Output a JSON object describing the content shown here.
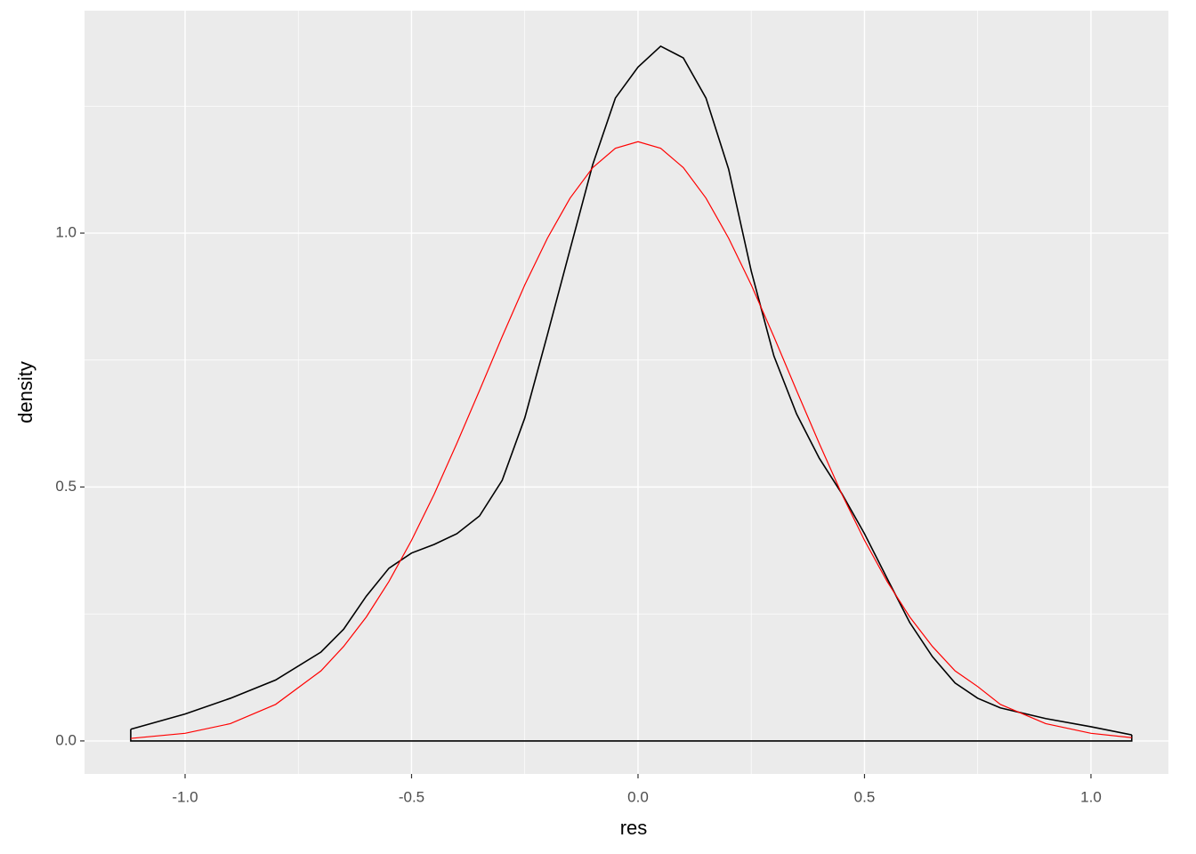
{
  "chart_data": {
    "type": "line",
    "x_label": "res",
    "y_label": "density",
    "x": [
      -1.12,
      -1.0,
      -0.9,
      -0.8,
      -0.7,
      -0.65,
      -0.6,
      -0.55,
      -0.5,
      -0.45,
      -0.4,
      -0.35,
      -0.3,
      -0.25,
      -0.2,
      -0.15,
      -0.1,
      -0.05,
      0,
      0.05,
      0.1,
      0.15,
      0.2,
      0.25,
      0.3,
      0.35,
      0.4,
      0.45,
      0.5,
      0.55,
      0.6,
      0.65,
      0.7,
      0.75,
      0.8,
      0.9,
      1.0,
      1.09
    ],
    "series": [
      {
        "color": "#000000",
        "values": [
          0.023,
          0.053,
          0.084,
          0.12,
          0.175,
          0.22,
          0.285,
          0.34,
          0.37,
          0.387,
          0.408,
          0.443,
          0.513,
          0.636,
          0.8,
          0.968,
          1.135,
          1.266,
          1.327,
          1.368,
          1.345,
          1.266,
          1.126,
          0.925,
          0.758,
          0.644,
          0.557,
          0.487,
          0.408,
          0.32,
          0.233,
          0.166,
          0.114,
          0.084,
          0.065,
          0.044,
          0.028,
          0.012
        ]
      },
      {
        "color": "#ff0000",
        "values": [
          0.005,
          0.015,
          0.034,
          0.072,
          0.138,
          0.186,
          0.244,
          0.314,
          0.395,
          0.486,
          0.586,
          0.69,
          0.796,
          0.898,
          0.99,
          1.069,
          1.129,
          1.167,
          1.18,
          1.167,
          1.129,
          1.069,
          0.99,
          0.898,
          0.796,
          0.69,
          0.586,
          0.486,
          0.395,
          0.314,
          0.244,
          0.186,
          0.138,
          0.107,
          0.072,
          0.034,
          0.015,
          0.0065
        ]
      }
    ],
    "xlim": [
      -1.222,
      1.171
    ],
    "xticks": [
      {
        "value": -1,
        "label": "-1.0"
      },
      -0.5,
      {
        "value": 0,
        "label": "0.0"
      },
      0.5,
      {
        "value": 1,
        "label": "1.0"
      }
    ],
    "ylim": [
      -0.065,
      1.438
    ],
    "yticks": [
      {
        "value": 0,
        "label": "0.0"
      },
      0.5,
      {
        "value": 1,
        "label": "1.0"
      }
    ],
    "grid": true
  }
}
